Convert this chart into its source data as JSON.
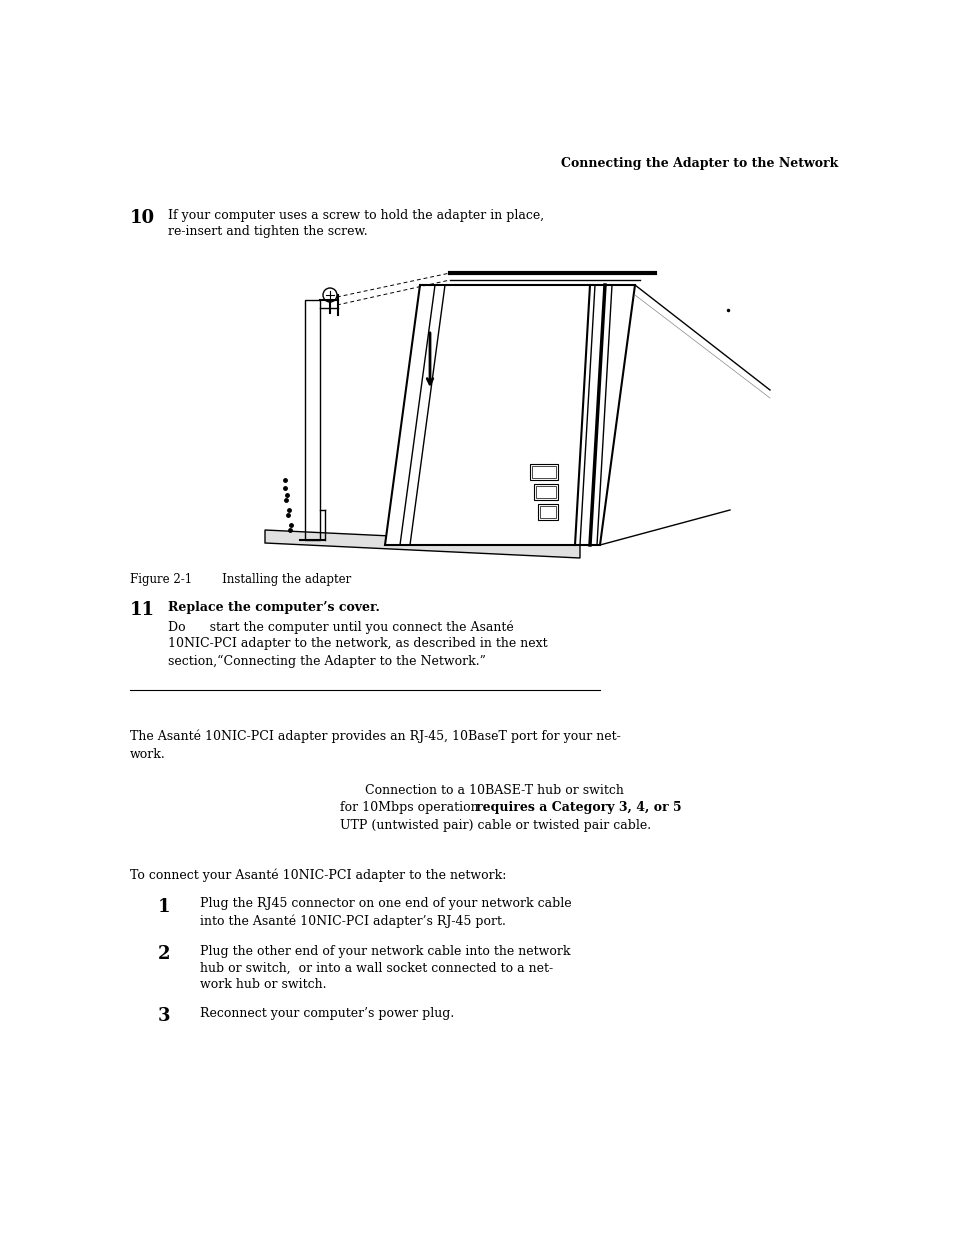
{
  "bg_color": "#ffffff",
  "page_width": 9.54,
  "page_height": 12.35,
  "header_title": "Connecting the Adapter to the Network",
  "step10_num": "10",
  "step10_text_line1": "If your computer uses a screw to hold the adapter in place,",
  "step10_text_line2": "re-insert and tighten the screw.",
  "figure_caption": "Figure 2-1        Installing the adapter",
  "step11_num": "11",
  "step11_text_line1": "Replace the computer’s cover.",
  "step11_text_line2": "Do      start the computer until you connect the Asanté",
  "step11_text_line3": "10NIC-PCI adapter to the network, as described in the next",
  "step11_text_line4": "section,“Connecting the Adapter to the Network.”",
  "intro_line1": "The Asanté 10NIC-PCI adapter provides an RJ-45, 10BaseT port for your net-",
  "intro_line2": "work.",
  "note_line1": "Connection to a 10BASE-T hub or switch",
  "note_line2_pre": "for 10Mbps operation ",
  "note_line2_bold": "requires a Category 3, 4, or 5",
  "note_line3": "UTP (untwisted pair) cable or twisted pair cable.",
  "to_connect_text": "To connect your Asanté 10NIC-PCI adapter to the network:",
  "s1_line1": "Plug the RJ45 connector on one end of your network cable",
  "s1_line2": "into the Asanté 10NIC-PCI adapter’s RJ-45 port.",
  "s2_line1": "Plug the other end of your network cable into the network",
  "s2_line2": "hub or switch,  or into a wall socket connected to a net-",
  "s2_line3": "work hub or switch.",
  "s3_line1": "Reconnect your computer’s power plug."
}
